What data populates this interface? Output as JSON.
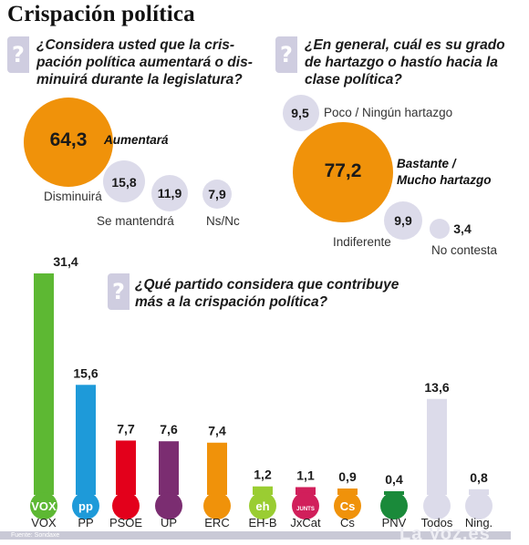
{
  "title": "Crispación política",
  "q1": {
    "lines": [
      "¿Considera usted que la cris-",
      "pación política aumentará o dis-",
      "minuirá durante la legislatura?"
    ],
    "items": [
      {
        "value": "64,3",
        "label": "Aumentará",
        "color": "#f0920a"
      },
      {
        "value": "15,8",
        "label": "Disminuirá",
        "color": "#dcdbea"
      },
      {
        "value": "11,9",
        "label": "Se mantendrá",
        "color": "#dcdbea"
      },
      {
        "value": "7,9",
        "label": "Ns/Nc",
        "color": "#dcdbea"
      }
    ]
  },
  "q2": {
    "lines": [
      "¿En general, cuál es su grado",
      "de hartazgo o hastío hacia la",
      "clase política?"
    ],
    "items": [
      {
        "value": "9,5",
        "label": "Poco / Ningún hartazgo",
        "color": "#dcdbea"
      },
      {
        "value": "77,2",
        "label_lines": [
          "Bastante /",
          "Mucho hartazgo"
        ],
        "color": "#f0920a"
      },
      {
        "value": "9,9",
        "label": "Indiferente",
        "color": "#dcdbea"
      },
      {
        "value": "3,4",
        "label": "No contesta",
        "color": "#dcdbea"
      }
    ]
  },
  "q3": {
    "lines": [
      "¿Qué partido considera que contribuye",
      "más a la crispación política?"
    ]
  },
  "chart_data": {
    "type": "bar",
    "categories": [
      "VOX",
      "PP",
      "PSOE",
      "UP",
      "ERC",
      "EH-B",
      "JxCat",
      "Cs",
      "PNV",
      "Todos",
      "Ning."
    ],
    "values": [
      31.4,
      15.6,
      7.7,
      7.6,
      7.4,
      1.2,
      1.1,
      0.9,
      0.4,
      13.6,
      0.8
    ],
    "value_labels": [
      "31,4",
      "15,6",
      "7,7",
      "7,6",
      "7,4",
      "1,2",
      "1,1",
      "0,9",
      "0,4",
      "13,6",
      "0,8"
    ],
    "colors": [
      "#5db833",
      "#1e9ad9",
      "#e3001b",
      "#7b2d71",
      "#f0920a",
      "#9acd32",
      "#d11f5b",
      "#f0920a",
      "#1a8a3a",
      "#dcdbea",
      "#dcdbea"
    ],
    "logo_text": [
      "VOX",
      "pp",
      "",
      "",
      "",
      "eh",
      "JUNTS",
      "Cs",
      "",
      "",
      ""
    ],
    "ylim": [
      0,
      31.4
    ]
  },
  "footer": {
    "note": "Fuente: Sondaxe",
    "watermark": "La Voz.es"
  }
}
